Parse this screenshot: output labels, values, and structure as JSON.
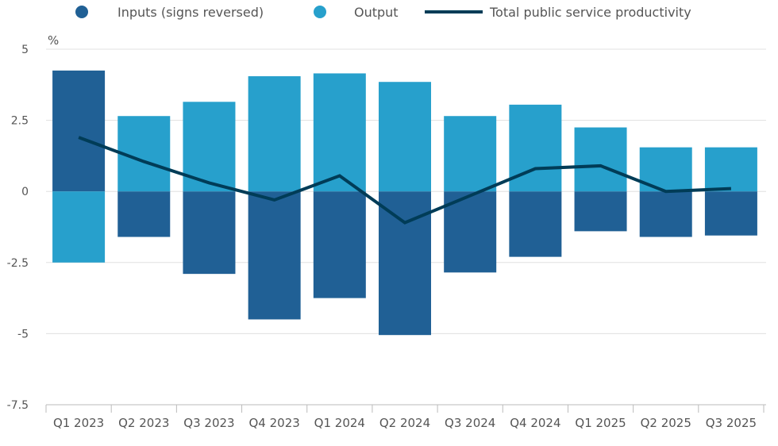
{
  "chart_data": {
    "type": "bar",
    "stacked": true,
    "ylabel": "%",
    "ylim": [
      -7.5,
      5
    ],
    "yticks": [
      5,
      2.5,
      0,
      -2.5,
      -5,
      -7.5
    ],
    "ytick_labels": [
      "5",
      "2.5",
      "0",
      "-2.5",
      "-5",
      "-7.5"
    ],
    "grid": true,
    "legend_placement": "top",
    "categories": [
      "Q1 2023",
      "Q2 2023",
      "Q3 2023",
      "Q4 2023",
      "Q1 2024",
      "Q2 2024",
      "Q3 2024",
      "Q4 2024",
      "Q1 2025",
      "Q2 2025",
      "Q3 2025"
    ],
    "series": [
      {
        "name": "Inputs (signs reversed)",
        "type": "bar",
        "color": "#206095",
        "values": [
          4.25,
          -1.6,
          -2.9,
          -4.5,
          -3.75,
          -5.05,
          -2.85,
          -2.3,
          -1.4,
          -1.6,
          -1.55
        ]
      },
      {
        "name": "Output",
        "type": "bar",
        "color": "#27a0cc",
        "values": [
          -2.5,
          2.65,
          3.15,
          4.05,
          4.15,
          3.85,
          2.65,
          3.05,
          2.25,
          1.55,
          1.55
        ]
      },
      {
        "name": "Total public service productivity",
        "type": "line",
        "color": "#003c57",
        "values": [
          1.9,
          1.05,
          0.3,
          -0.3,
          0.55,
          -1.1,
          -0.15,
          0.8,
          0.9,
          0.0,
          0.1
        ]
      }
    ]
  }
}
